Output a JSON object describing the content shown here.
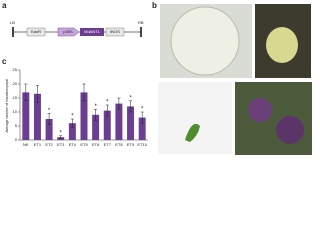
{
  "panel_labels": {
    "a": "a",
    "b": "b",
    "c": "c"
  },
  "construct": {
    "elements": [
      "LB",
      "KanR",
      "p35S",
      "MdANT1",
      "tNOS",
      "RB"
    ]
  },
  "chart_data": {
    "type": "bar",
    "ylabel": "Average number of shoots/explant",
    "categories": [
      "NK",
      "ET1",
      "ET2",
      "ET3",
      "ET4",
      "ET5",
      "ET6",
      "ET7",
      "ET8",
      "ET9",
      "ET10"
    ],
    "values": [
      17,
      16.5,
      7.5,
      1,
      6,
      17,
      9,
      10.5,
      13,
      12,
      8
    ],
    "errors": [
      3,
      3,
      2,
      0.5,
      1.5,
      3,
      2,
      2,
      2,
      2,
      2
    ],
    "annotations": [
      null,
      null,
      "*",
      "*",
      "*",
      null,
      "*",
      "*",
      null,
      "*",
      "*"
    ],
    "color": "#6b3e91",
    "ylim": [
      0,
      25
    ],
    "yticks": [
      0,
      5,
      10,
      15,
      20,
      25
    ]
  }
}
